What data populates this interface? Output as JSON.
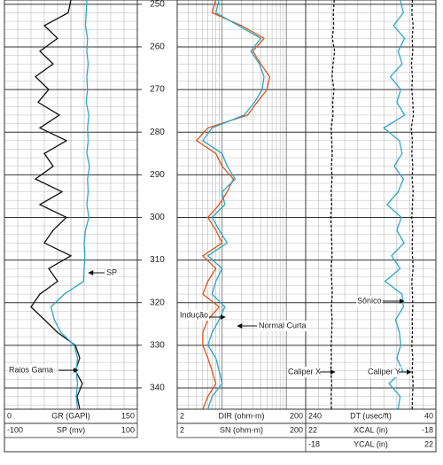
{
  "chart_data": {
    "type": "well-log",
    "depth": [
      249,
      252,
      255,
      258,
      261,
      264,
      267,
      270,
      273,
      276,
      279,
      282,
      285,
      288,
      291,
      294,
      297,
      300,
      303,
      306,
      309,
      312,
      315,
      318,
      321,
      324,
      327,
      330,
      333,
      336,
      339,
      342,
      345
    ],
    "ylim": [
      249,
      345
    ],
    "yticks": [
      250,
      260,
      270,
      280,
      290,
      300,
      310,
      320,
      330,
      340
    ],
    "grid": true,
    "tracks": [
      {
        "log_scale": false,
        "series": [
          {
            "name": "GR (GAPI)",
            "color": "#111111",
            "style": "solid",
            "xlim": [
              0,
              150
            ],
            "values": [
              75,
              72,
              45,
              60,
              40,
              55,
              35,
              50,
              38,
              62,
              40,
              70,
              45,
              55,
              35,
              65,
              40,
              70,
              55,
              45,
              75,
              50,
              60,
              40,
              30,
              45,
              60,
              80,
              85,
              80,
              88,
              82,
              85
            ]
          },
          {
            "name": "SP (mv)",
            "color": "#2aa7c8",
            "style": "solid",
            "xlim": [
              -100,
              100
            ],
            "values": [
              24,
              23,
              22,
              25,
              24,
              26,
              24,
              25,
              23,
              27,
              25,
              26,
              24,
              28,
              25,
              26,
              24,
              27,
              22,
              20,
              21,
              20,
              19,
              -10,
              -30,
              -25,
              -15,
              5,
              10,
              8,
              10,
              8,
              10
            ]
          }
        ]
      },
      {
        "log_scale": true,
        "series": [
          {
            "name": "DIR (ohm-m)",
            "color": "#e0541b",
            "style": "solid",
            "xlim": [
              2,
              200
            ],
            "values": [
              8,
              7,
              20,
              45,
              30,
              40,
              55,
              50,
              35,
              25,
              6,
              4,
              8,
              10,
              15,
              12,
              9,
              6,
              8,
              10,
              5,
              8,
              6,
              5,
              9,
              6,
              5,
              5,
              6,
              7,
              8,
              6,
              5
            ]
          },
          {
            "name": "SN (ohm-m)",
            "color": "#2aa7c8",
            "style": "solid",
            "xlim": [
              2,
              200
            ],
            "values": [
              9,
              8,
              18,
              40,
              28,
              38,
              45,
              42,
              32,
              22,
              7,
              5,
              10,
              12,
              16,
              10,
              11,
              7,
              9,
              12,
              6,
              10,
              8,
              7,
              11,
              9,
              7,
              6,
              8,
              9,
              10,
              7,
              6
            ]
          }
        ]
      },
      {
        "log_scale": false,
        "series": [
          {
            "name": "DT (usec/ft)",
            "color": "#2aa7c8",
            "style": "solid",
            "xlim": [
              240,
              40
            ],
            "values": [
              95,
              90,
              105,
              88,
              98,
              92,
              110,
              94,
              100,
              88,
              120,
              96,
              92,
              104,
              90,
              98,
              115,
              93,
              100,
              89,
              108,
              95,
              118,
              92,
              90,
              102,
              96,
              94,
              100,
              91,
              112,
              95,
              98
            ]
          },
          {
            "name": "XCAL (in)",
            "color": "#111111",
            "style": "dashed",
            "xlim": [
              22,
              -18
            ],
            "values": [
              13.2,
              13.5,
              13.4,
              13.8,
              13.1,
              13.6,
              13.9,
              13.3,
              13.7,
              13.6,
              14.2,
              14.0,
              13.8,
              14.1,
              13.9,
              14.2,
              14.0,
              14.3,
              14.1,
              14.0,
              13.9,
              14.2,
              14.0,
              13.8,
              14.1,
              13.9,
              14.0,
              14.2,
              14.1,
              14.3,
              14.0,
              14.2,
              14.1
            ]
          },
          {
            "name": "YCAL (in)",
            "color": "#111111",
            "style": "dashed",
            "xlim": [
              -18,
              22
            ],
            "values": [
              14.8,
              14.6,
              15.0,
              14.7,
              14.9,
              14.5,
              14.8,
              14.6,
              14.9,
              15.1,
              14.4,
              14.8,
              14.6,
              14.9,
              14.7,
              15.0,
              14.8,
              14.6,
              14.9,
              14.7,
              14.8,
              15.0,
              14.6,
              14.8,
              14.9,
              14.7,
              14.8,
              14.6,
              14.9,
              14.7,
              15.0,
              14.8,
              14.7
            ]
          }
        ]
      }
    ],
    "annotations": [
      "SP",
      "Raios Gama",
      "Indução",
      "Normal Curta",
      "Sônico",
      "Caliper X",
      "Caliper Y"
    ]
  }
}
